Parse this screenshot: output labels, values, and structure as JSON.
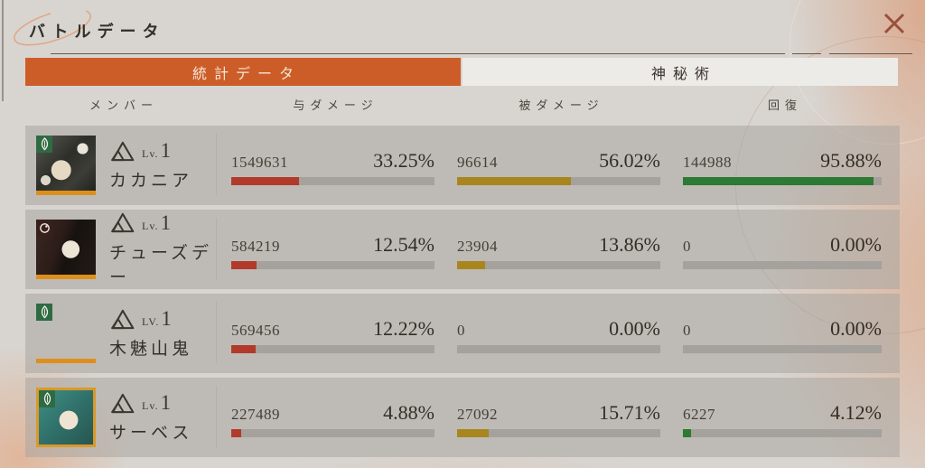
{
  "window": {
    "title": "バトルデータ"
  },
  "icons": {
    "close-icon": "x-cross",
    "insight-icon": "triple-triangle",
    "afflatus-plant-icon": "leaf-drop",
    "afflatus-spirit-icon": "ring"
  },
  "colors": {
    "accent_orange": "#cd5d28",
    "inactive_tab_bg": "#edebe8",
    "bar_dealt_red": "#b13a2b",
    "bar_taken_gold": "#a8861d",
    "bar_heal_green": "#2c7a33",
    "bar_track_gray": "#a5a19c",
    "close_x_color": "#9a4f3c"
  },
  "tabs": [
    {
      "label": "統計データ",
      "active": true
    },
    {
      "label": "神秘術",
      "active": false
    }
  ],
  "columns": {
    "member": "メンバー",
    "dealt": "与ダメージ",
    "taken": "被ダメージ",
    "heal": "回復"
  },
  "rows": [
    {
      "name": "カカニア",
      "level_prefix": "Lv.",
      "level": "1",
      "afflatus": "plant",
      "stats": {
        "dealt": {
          "value": "1549631",
          "percent": "33.25%",
          "pct": 33.25
        },
        "taken": {
          "value": "96614",
          "percent": "56.02%",
          "pct": 56.02
        },
        "heal": {
          "value": "144988",
          "percent": "95.88%",
          "pct": 95.88
        }
      }
    },
    {
      "name": "チューズデー",
      "level_prefix": "Lv.",
      "level": "1",
      "afflatus": "spirit",
      "stats": {
        "dealt": {
          "value": "584219",
          "percent": "12.54%",
          "pct": 12.54
        },
        "taken": {
          "value": "23904",
          "percent": "13.86%",
          "pct": 13.86
        },
        "heal": {
          "value": "0",
          "percent": "0.00%",
          "pct": 0
        }
      }
    },
    {
      "name": "木魅山鬼",
      "level_prefix": "LV.",
      "level": "1",
      "afflatus": "plant",
      "stats": {
        "dealt": {
          "value": "569456",
          "percent": "12.22%",
          "pct": 12.22
        },
        "taken": {
          "value": "0",
          "percent": "0.00%",
          "pct": 0
        },
        "heal": {
          "value": "0",
          "percent": "0.00%",
          "pct": 0
        }
      }
    },
    {
      "name": "サーベス",
      "level_prefix": "Lv.",
      "level": "1",
      "afflatus": "plant",
      "stats": {
        "dealt": {
          "value": "227489",
          "percent": "4.88%",
          "pct": 4.88
        },
        "taken": {
          "value": "27092",
          "percent": "15.71%",
          "pct": 15.71
        },
        "heal": {
          "value": "6227",
          "percent": "4.12%",
          "pct": 4.12
        }
      }
    }
  ]
}
